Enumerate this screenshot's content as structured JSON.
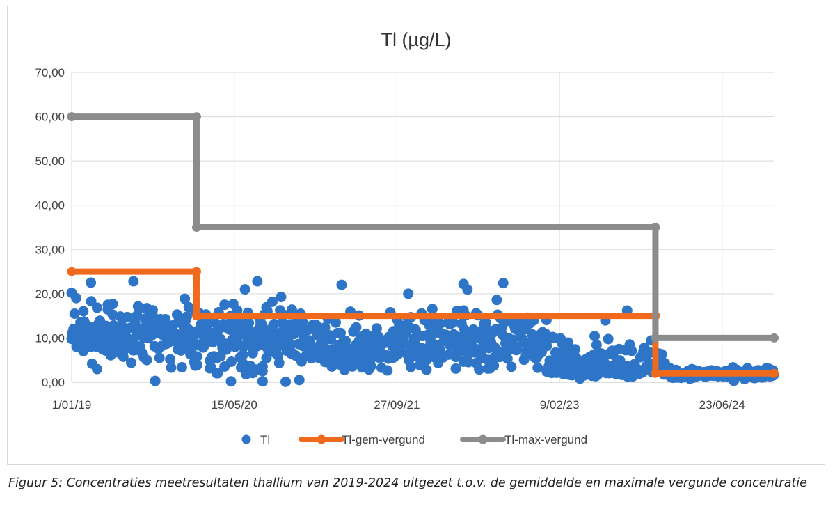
{
  "chart_data": {
    "type": "scatter",
    "title": "Tl (µg/L)",
    "xlabel": "",
    "ylabel": "",
    "x_type": "date",
    "xlim": [
      "2019-01-01",
      "2024-12-01"
    ],
    "ylim": [
      0,
      70
    ],
    "y_ticks": [
      "0,00",
      "10,00",
      "20,00",
      "30,00",
      "40,00",
      "50,00",
      "60,00",
      "70,00"
    ],
    "x_ticks": [
      {
        "date": "2019-01-01",
        "label": "1/01/19"
      },
      {
        "date": "2020-05-15",
        "label": "15/05/20"
      },
      {
        "date": "2021-09-27",
        "label": "27/09/21"
      },
      {
        "date": "2023-02-09",
        "label": "9/02/23"
      },
      {
        "date": "2024-06-23",
        "label": "23/06/24"
      }
    ],
    "grid": true,
    "legend_position": "bottom",
    "series": [
      {
        "name": "Tl",
        "kind": "scatter",
        "color": "#2e75c8",
        "segments": [
          {
            "from": "2019-01-01",
            "to": "2019-12-31",
            "min": 2,
            "max": 23,
            "center": 11
          },
          {
            "from": "2020-01-01",
            "to": "2020-12-31",
            "min": 0,
            "max": 23,
            "center": 10
          },
          {
            "from": "2021-01-01",
            "to": "2021-09-30",
            "min": 2,
            "max": 22,
            "center": 7
          },
          {
            "from": "2021-10-01",
            "to": "2022-12-31",
            "min": 1,
            "max": 23,
            "center": 9
          },
          {
            "from": "2023-01-01",
            "to": "2023-12-31",
            "min": 0.5,
            "max": 16,
            "center": 3
          },
          {
            "from": "2024-01-01",
            "to": "2024-11-30",
            "min": 0.2,
            "max": 4,
            "center": 1.8
          }
        ],
        "points": [
          {
            "x": "2019-01-15",
            "y": 19.0
          },
          {
            "x": "2019-03-01",
            "y": 22.5
          },
          {
            "x": "2019-07-10",
            "y": 22.8
          },
          {
            "x": "2019-09-15",
            "y": 0.3
          },
          {
            "x": "2020-05-05",
            "y": 0.2
          },
          {
            "x": "2020-06-20",
            "y": 1.8
          },
          {
            "x": "2020-07-25",
            "y": 22.8
          },
          {
            "x": "2020-08-10",
            "y": 0.2
          },
          {
            "x": "2020-10-20",
            "y": 0.1
          },
          {
            "x": "2020-12-01",
            "y": 0.5
          },
          {
            "x": "2021-04-10",
            "y": 22.0
          },
          {
            "x": "2021-11-01",
            "y": 20.0
          },
          {
            "x": "2022-04-20",
            "y": 22.2
          },
          {
            "x": "2022-08-20",
            "y": 22.4
          },
          {
            "x": "2023-09-05",
            "y": 16.2
          }
        ]
      },
      {
        "name": "Tl-gem-vergund",
        "kind": "step-line",
        "color": "#f06a1e",
        "steps": [
          {
            "from": "2019-01-01",
            "to": "2020-01-20",
            "value": 25
          },
          {
            "from": "2020-01-20",
            "to": "2023-12-01",
            "value": 15
          },
          {
            "from": "2023-12-01",
            "to": "2024-11-30",
            "value": 2
          }
        ]
      },
      {
        "name": "Tl-max-vergund",
        "kind": "step-line",
        "color": "#8c8c8c",
        "steps": [
          {
            "from": "2019-01-01",
            "to": "2020-01-20",
            "value": 60
          },
          {
            "from": "2020-01-20",
            "to": "2023-12-01",
            "value": 35
          },
          {
            "from": "2023-12-01",
            "to": "2024-11-30",
            "value": 10
          }
        ]
      }
    ]
  },
  "caption": "Figuur 5: Concentraties meetresultaten thallium van 2019-2024 uitgezet t.o.v. de gemiddelde en maximale vergunde concentratie"
}
